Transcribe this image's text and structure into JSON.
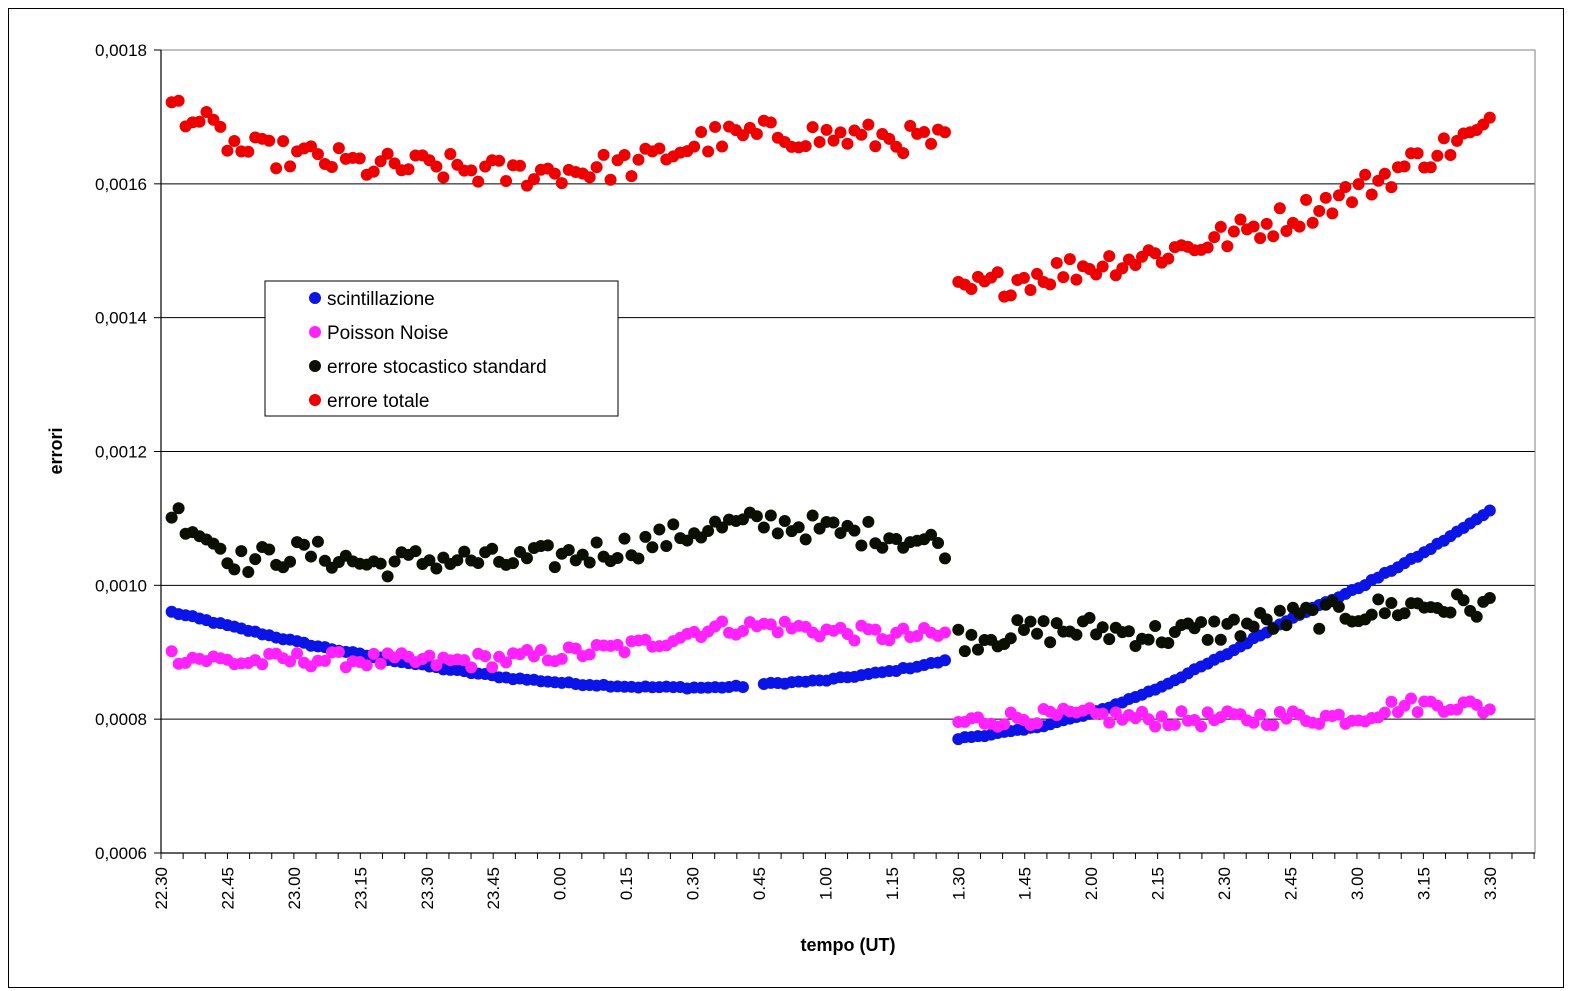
{
  "chart_data": {
    "type": "scatter",
    "xlabel": "tempo (UT)",
    "ylabel": "errori",
    "ylim": [
      0.0006,
      0.0018
    ],
    "y_ticks": [
      "0,0006",
      "0,0008",
      "0,0010",
      "0,0012",
      "0,0014",
      "0,0016",
      "0,0018"
    ],
    "x_ticks": [
      "22.30",
      "22.45",
      "23.00",
      "23.15",
      "23.30",
      "23.45",
      "0.00",
      "0.15",
      "0.30",
      "0.45",
      "1.00",
      "1.15",
      "1.30",
      "1.45",
      "2.00",
      "2.15",
      "2.30",
      "2.45",
      "3.00",
      "3.15",
      "3.30"
    ],
    "grid": "horizontal major gridlines",
    "legend_position": "upper-left inside plot",
    "x_unit_note": "x values are clock times (UT) expressed as hours after midnight; negative = before midnight",
    "series": [
      {
        "name": "scintillazione",
        "color": "#0b14e6",
        "points": [
          [
            -1.46,
            0.00096
          ],
          [
            -1.2,
            0.000935
          ],
          [
            -0.95,
            0.000912
          ],
          [
            -0.7,
            0.000893
          ],
          [
            -0.45,
            0.000876
          ],
          [
            -0.2,
            0.000862
          ],
          [
            0.05,
            0.000853
          ],
          [
            0.3,
            0.000848
          ],
          [
            0.55,
            0.000847
          ],
          [
            0.7,
            0.000849
          ],
          [
            0.75,
            0.000852
          ],
          [
            1.0,
            0.000858
          ],
          [
            1.25,
            0.000872
          ],
          [
            1.45,
            0.000887
          ],
          [
            1.5,
            0.000771
          ],
          [
            1.75,
            0.000784
          ],
          [
            2.0,
            0.000808
          ],
          [
            2.25,
            0.000846
          ],
          [
            2.5,
            0.000895
          ],
          [
            2.75,
            0.000951
          ],
          [
            3.0,
            0.000995
          ],
          [
            3.25,
            0.001048
          ],
          [
            3.45,
            0.001098
          ],
          [
            3.5,
            0.001113
          ]
        ]
      },
      {
        "name": "Poisson Noise",
        "color": "#ff22ff",
        "points": [
          [
            -1.46,
            0.000895
          ],
          [
            -1.2,
            0.000885
          ],
          [
            -0.95,
            0.00089
          ],
          [
            -0.7,
            0.000888
          ],
          [
            -0.45,
            0.000885
          ],
          [
            -0.2,
            0.00089
          ],
          [
            0.05,
            0.000898
          ],
          [
            0.3,
            0.00091
          ],
          [
            0.55,
            0.000935
          ],
          [
            0.8,
            0.00094
          ],
          [
            1.05,
            0.00093
          ],
          [
            1.25,
            0.000925
          ],
          [
            1.45,
            0.000925
          ],
          [
            1.5,
            0.000795
          ],
          [
            1.75,
            0.000803
          ],
          [
            2.0,
            0.000805
          ],
          [
            2.25,
            0.0008
          ],
          [
            2.5,
            0.0008
          ],
          [
            2.75,
            0.000803
          ],
          [
            3.0,
            0.000803
          ],
          [
            3.15,
            0.00082
          ],
          [
            3.35,
            0.000823
          ],
          [
            3.5,
            0.000815
          ]
        ]
      },
      {
        "name": "errore stocastico standard",
        "color": "#0b0f00",
        "points": [
          [
            -1.46,
            0.001112
          ],
          [
            -1.2,
            0.001035
          ],
          [
            -0.95,
            0.00105
          ],
          [
            -0.7,
            0.00103
          ],
          [
            -0.45,
            0.00104
          ],
          [
            -0.2,
            0.001035
          ],
          [
            0.05,
            0.001045
          ],
          [
            0.3,
            0.00106
          ],
          [
            0.55,
            0.001085
          ],
          [
            0.8,
            0.001095
          ],
          [
            1.05,
            0.00108
          ],
          [
            1.25,
            0.001075
          ],
          [
            1.45,
            0.00106
          ],
          [
            1.5,
            0.00092
          ],
          [
            1.75,
            0.00093
          ],
          [
            2.0,
            0.000935
          ],
          [
            2.25,
            0.000925
          ],
          [
            2.5,
            0.000935
          ],
          [
            2.75,
            0.00095
          ],
          [
            3.0,
            0.00096
          ],
          [
            3.25,
            0.00097
          ],
          [
            3.5,
            0.000968
          ]
        ]
      },
      {
        "name": "errore totale",
        "color": "#ee0000",
        "points": [
          [
            -1.46,
            0.001722
          ],
          [
            -1.2,
            0.00165
          ],
          [
            -0.95,
            0.00164
          ],
          [
            -0.7,
            0.001625
          ],
          [
            -0.45,
            0.001625
          ],
          [
            -0.2,
            0.001615
          ],
          [
            0.05,
            0.00162
          ],
          [
            0.3,
            0.00163
          ],
          [
            0.55,
            0.001665
          ],
          [
            0.8,
            0.001675
          ],
          [
            1.05,
            0.00167
          ],
          [
            1.25,
            0.001668
          ],
          [
            1.45,
            0.001662
          ],
          [
            1.5,
            0.001437
          ],
          [
            1.75,
            0.00146
          ],
          [
            2.0,
            0.001478
          ],
          [
            2.25,
            0.001495
          ],
          [
            2.5,
            0.00152
          ],
          [
            2.75,
            0.00155
          ],
          [
            3.0,
            0.00159
          ],
          [
            3.25,
            0.00164
          ],
          [
            3.5,
            0.001682
          ]
        ]
      }
    ]
  }
}
